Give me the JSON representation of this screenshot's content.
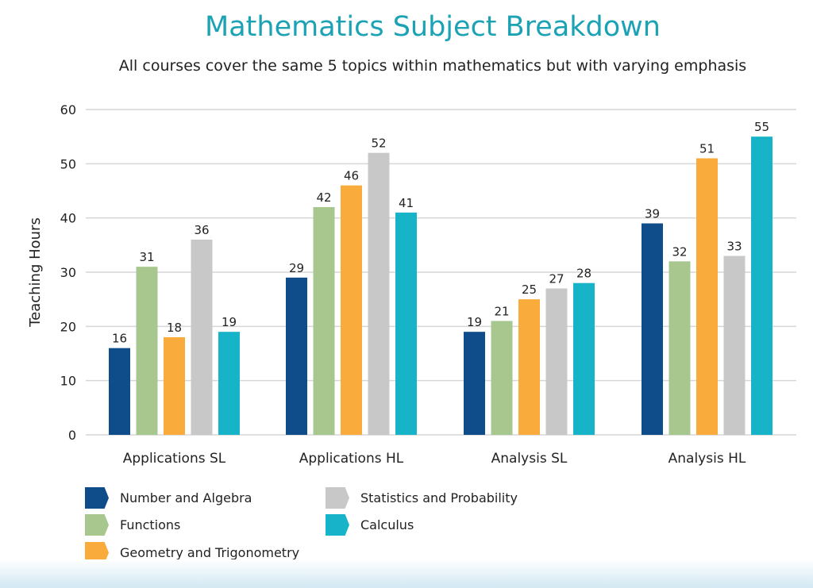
{
  "chart_data": {
    "type": "bar",
    "title": "Mathematics Subject Breakdown",
    "subtitle": "All courses cover the same 5 topics within mathematics but with varying emphasis",
    "xlabel": "",
    "ylabel": "Teaching Hours",
    "ylim": [
      0,
      60
    ],
    "yticks": [
      0,
      10,
      20,
      30,
      40,
      50,
      60
    ],
    "grid": true,
    "legend_position": "bottom-left",
    "categories": [
      "Applications SL",
      "Applications HL",
      "Analysis SL",
      "Analysis HL"
    ],
    "series": [
      {
        "name": "Number and Algebra",
        "color": "#0f4c8a",
        "values": [
          16,
          29,
          19,
          39
        ]
      },
      {
        "name": "Functions",
        "color": "#a7c78f",
        "values": [
          31,
          42,
          21,
          32
        ]
      },
      {
        "name": "Geometry and Trigonometry",
        "color": "#f9ab3b",
        "values": [
          18,
          46,
          25,
          51
        ]
      },
      {
        "name": "Statistics and Probability",
        "color": "#c8c8c8",
        "values": [
          36,
          52,
          27,
          33
        ]
      },
      {
        "name": "Calculus",
        "color": "#17b3c9",
        "values": [
          19,
          41,
          28,
          55
        ]
      }
    ]
  }
}
